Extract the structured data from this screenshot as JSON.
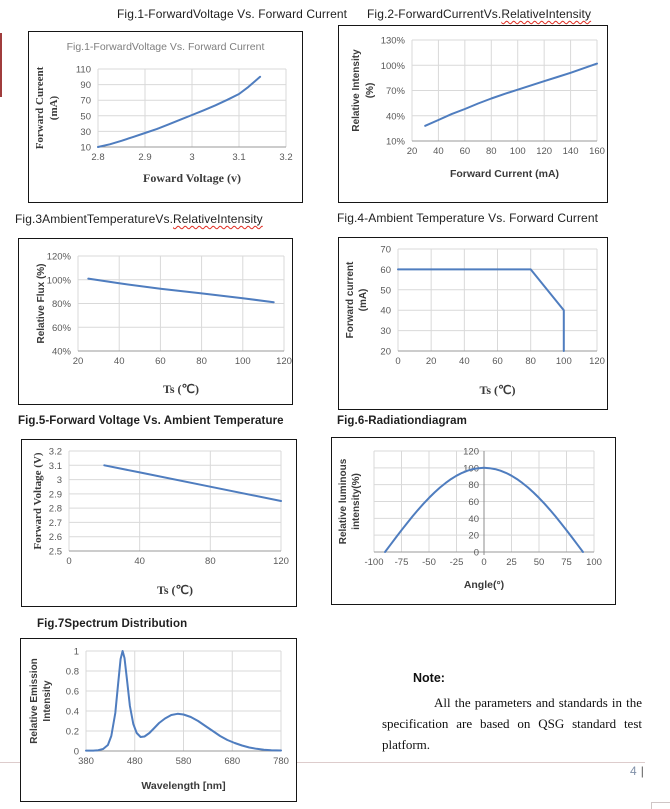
{
  "style": {
    "line_blue": "#4f7dbf",
    "grid_gray": "#d9d9d9",
    "axis_gray": "#9a9a9a",
    "center_axis_gray": "#8c8c8c",
    "tick_text": "#595959",
    "label_text": "#3a3a3a",
    "inner_title_gray": "#7f7f7f",
    "squiggle_red": "#e02b20"
  },
  "headers": {
    "fig1": {
      "prefix": "Fig.1-ForwardVoltage Vs. Forward Current",
      "squiggle": ""
    },
    "fig2": {
      "prefix": "Fig.2-ForwardCurrentVs.",
      "squiggle": "RelativeIntensity"
    },
    "fig3": {
      "prefix": "Fig.3AmbientTemperatureVs.",
      "squiggle": "RelativeIntensity"
    },
    "fig4": {
      "prefix": "Fig.4-Ambient Temperature Vs. Forward Current",
      "squiggle": ""
    },
    "fig5": {
      "prefix": "Fig.5-Forward Voltage Vs. Ambient Temperature",
      "squiggle": ""
    },
    "fig6": {
      "prefix": "Fig.6-Radiationdiagram",
      "squiggle": ""
    },
    "fig7": {
      "prefix": "Fig.7Spectrum Distribution",
      "squiggle": ""
    }
  },
  "chart_data": [
    {
      "id": "fig1",
      "type": "line",
      "title": "Fig.1-ForwardVoltage Vs. Forward Current",
      "inner_title": "Fig.1-ForwardVoltage Vs. Forward Current",
      "xlabel": "Foward Voltage (v)",
      "ylabel_lines": [
        "Forward Cureent",
        "(mA)"
      ],
      "xlim": [
        2.8,
        3.2
      ],
      "ylim": [
        10,
        110
      ],
      "xticks": [
        {
          "v": 2.8,
          "l": "2.8"
        },
        {
          "v": 2.9,
          "l": "2.9"
        },
        {
          "v": 3,
          "l": "3"
        },
        {
          "v": 3.1,
          "l": "3.1"
        },
        {
          "v": 3.2,
          "l": "3.2"
        }
      ],
      "yticks": [
        {
          "v": 10,
          "l": "10"
        },
        {
          "v": 30,
          "l": "30"
        },
        {
          "v": 50,
          "l": "50"
        },
        {
          "v": 70,
          "l": "70"
        },
        {
          "v": 90,
          "l": "90"
        },
        {
          "v": 110,
          "l": "110"
        }
      ],
      "points": [
        [
          2.8,
          10
        ],
        [
          2.825,
          13.5
        ],
        [
          2.85,
          18
        ],
        [
          2.875,
          23
        ],
        [
          2.9,
          28
        ],
        [
          2.925,
          33
        ],
        [
          2.95,
          39
        ],
        [
          2.975,
          45
        ],
        [
          3.0,
          51
        ],
        [
          3.025,
          57
        ],
        [
          3.05,
          63.5
        ],
        [
          3.075,
          70.5
        ],
        [
          3.1,
          78
        ],
        [
          3.12,
          87
        ],
        [
          3.145,
          100
        ]
      ]
    },
    {
      "id": "fig2",
      "type": "line",
      "title": "Fig.2-ForwardCurrentVs.RelativeIntensity",
      "xlabel": "Forward Current (mA)",
      "ylabel_lines": [
        "Relative Intensity",
        "(%)"
      ],
      "xlim": [
        20,
        160
      ],
      "ylim": [
        10,
        130
      ],
      "xticks": [
        {
          "v": 20,
          "l": "20"
        },
        {
          "v": 40,
          "l": "40"
        },
        {
          "v": 60,
          "l": "60"
        },
        {
          "v": 80,
          "l": "80"
        },
        {
          "v": 100,
          "l": "100"
        },
        {
          "v": 120,
          "l": "120"
        },
        {
          "v": 140,
          "l": "140"
        },
        {
          "v": 160,
          "l": "160"
        }
      ],
      "yticks": [
        {
          "v": 10,
          "l": "10%"
        },
        {
          "v": 40,
          "l": "40%"
        },
        {
          "v": 70,
          "l": "70%"
        },
        {
          "v": 100,
          "l": "100%"
        },
        {
          "v": 130,
          "l": "130%"
        }
      ],
      "points": [
        [
          30,
          28
        ],
        [
          40,
          35
        ],
        [
          50,
          42
        ],
        [
          60,
          48
        ],
        [
          70,
          54.5
        ],
        [
          80,
          60.5
        ],
        [
          90,
          66
        ],
        [
          100,
          71
        ],
        [
          110,
          76
        ],
        [
          120,
          81
        ],
        [
          130,
          86
        ],
        [
          140,
          91
        ],
        [
          150,
          96.5
        ],
        [
          160,
          102
        ]
      ]
    },
    {
      "id": "fig3",
      "type": "line",
      "title": "Fig.3AmbientTemperatureVs.RelativeIntensity",
      "xlabel": "Ts (℃)",
      "ylabel_lines": [
        "Relative Flux (%)"
      ],
      "xlim": [
        20,
        120
      ],
      "ylim": [
        40,
        120
      ],
      "xticks": [
        {
          "v": 20,
          "l": "20"
        },
        {
          "v": 40,
          "l": "40"
        },
        {
          "v": 60,
          "l": "60"
        },
        {
          "v": 80,
          "l": "80"
        },
        {
          "v": 100,
          "l": "100"
        },
        {
          "v": 120,
          "l": "120"
        }
      ],
      "yticks": [
        {
          "v": 40,
          "l": "40%"
        },
        {
          "v": 60,
          "l": "60%"
        },
        {
          "v": 80,
          "l": "80%"
        },
        {
          "v": 100,
          "l": "100%"
        },
        {
          "v": 120,
          "l": "120%"
        }
      ],
      "points": [
        [
          25,
          101
        ],
        [
          40,
          97
        ],
        [
          60,
          92.5
        ],
        [
          80,
          88.5
        ],
        [
          100,
          84.5
        ],
        [
          115,
          81
        ]
      ]
    },
    {
      "id": "fig4",
      "type": "line",
      "title": "Fig.4-Ambient Temperature Vs. Forward Current",
      "xlabel": "Ts (℃)",
      "ylabel_lines": [
        "Forward current",
        "(mA)"
      ],
      "xlim": [
        0,
        120
      ],
      "ylim": [
        20,
        70
      ],
      "xticks": [
        {
          "v": 0,
          "l": "0"
        },
        {
          "v": 20,
          "l": "20"
        },
        {
          "v": 40,
          "l": "40"
        },
        {
          "v": 60,
          "l": "60"
        },
        {
          "v": 80,
          "l": "80"
        },
        {
          "v": 100,
          "l": "100"
        },
        {
          "v": 120,
          "l": "120"
        }
      ],
      "yticks": [
        {
          "v": 20,
          "l": "20"
        },
        {
          "v": 30,
          "l": "30"
        },
        {
          "v": 40,
          "l": "40"
        },
        {
          "v": 50,
          "l": "50"
        },
        {
          "v": 60,
          "l": "60"
        },
        {
          "v": 70,
          "l": "70"
        }
      ],
      "points": [
        [
          0,
          60
        ],
        [
          80,
          60
        ],
        [
          100,
          40
        ],
        [
          100,
          20
        ]
      ]
    },
    {
      "id": "fig5",
      "type": "line",
      "title": "Fig.5-Forward Voltage Vs. Ambient Temperature",
      "xlabel": "Ts (℃)",
      "ylabel_lines": [
        "Forward Voltage (V)"
      ],
      "xlim": [
        0,
        120
      ],
      "ylim": [
        2.5,
        3.2
      ],
      "xticks": [
        {
          "v": 0,
          "l": "0"
        },
        {
          "v": 40,
          "l": "40"
        },
        {
          "v": 80,
          "l": "80"
        },
        {
          "v": 120,
          "l": "120"
        }
      ],
      "yticks": [
        {
          "v": 2.5,
          "l": "2.5"
        },
        {
          "v": 2.6,
          "l": "2.6"
        },
        {
          "v": 2.7,
          "l": "2.7"
        },
        {
          "v": 2.8,
          "l": "2.8"
        },
        {
          "v": 2.9,
          "l": "2.9"
        },
        {
          "v": 3,
          "l": "3"
        },
        {
          "v": 3.1,
          "l": "3.1"
        },
        {
          "v": 3.2,
          "l": "3.2"
        }
      ],
      "points": [
        [
          20,
          3.1
        ],
        [
          40,
          3.05
        ],
        [
          80,
          2.95
        ],
        [
          120,
          2.85
        ]
      ]
    },
    {
      "id": "fig6",
      "type": "line",
      "title": "Fig.6-Radiationdiagram",
      "xlabel": "Angle(°)",
      "ylabel_lines": [
        "Relative luminous",
        "intensity(%)"
      ],
      "xlim": [
        -100,
        100
      ],
      "ylim": [
        0,
        120
      ],
      "xticks": [
        {
          "v": -100,
          "l": "-100"
        },
        {
          "v": -75,
          "l": "-75"
        },
        {
          "v": -50,
          "l": "-50"
        },
        {
          "v": -25,
          "l": "-25"
        },
        {
          "v": 0,
          "l": "0"
        },
        {
          "v": 25,
          "l": "25"
        },
        {
          "v": 50,
          "l": "50"
        },
        {
          "v": 75,
          "l": "75"
        },
        {
          "v": 100,
          "l": "100"
        }
      ],
      "yticks": [
        {
          "v": 0,
          "l": "0"
        },
        {
          "v": 20,
          "l": "20"
        },
        {
          "v": 40,
          "l": "40"
        },
        {
          "v": 60,
          "l": "60"
        },
        {
          "v": 80,
          "l": "80"
        },
        {
          "v": 100,
          "l": "100"
        },
        {
          "v": 120,
          "l": "120"
        }
      ],
      "points": [
        [
          -90,
          0
        ],
        [
          -85,
          8.7
        ],
        [
          -80,
          17.4
        ],
        [
          -75,
          25.9
        ],
        [
          -70,
          34.2
        ],
        [
          -65,
          42.3
        ],
        [
          -60,
          50
        ],
        [
          -55,
          57.4
        ],
        [
          -50,
          64.3
        ],
        [
          -45,
          70.7
        ],
        [
          -40,
          76.6
        ],
        [
          -35,
          81.9
        ],
        [
          -30,
          86.6
        ],
        [
          -25,
          90.6
        ],
        [
          -20,
          94
        ],
        [
          -15,
          96.6
        ],
        [
          -10,
          98.5
        ],
        [
          -5,
          99.6
        ],
        [
          0,
          100
        ],
        [
          5,
          99.6
        ],
        [
          10,
          98.5
        ],
        [
          15,
          96.6
        ],
        [
          20,
          94
        ],
        [
          25,
          90.6
        ],
        [
          30,
          86.6
        ],
        [
          35,
          81.9
        ],
        [
          40,
          76.6
        ],
        [
          45,
          70.7
        ],
        [
          50,
          64.3
        ],
        [
          55,
          57.4
        ],
        [
          60,
          50
        ],
        [
          65,
          42.3
        ],
        [
          70,
          34.2
        ],
        [
          75,
          25.9
        ],
        [
          80,
          17.4
        ],
        [
          85,
          8.7
        ],
        [
          90,
          0
        ]
      ]
    },
    {
      "id": "fig7",
      "type": "line",
      "title": "Fig.7Spectrum Distribution",
      "xlabel": "Wavelength [nm]",
      "ylabel_lines": [
        "Relative Emission",
        "Intensity"
      ],
      "xlim": [
        380,
        780
      ],
      "ylim": [
        0,
        1
      ],
      "xticks": [
        {
          "v": 380,
          "l": "380"
        },
        {
          "v": 480,
          "l": "480"
        },
        {
          "v": 580,
          "l": "580"
        },
        {
          "v": 680,
          "l": "680"
        },
        {
          "v": 780,
          "l": "780"
        }
      ],
      "yticks": [
        {
          "v": 0,
          "l": "0"
        },
        {
          "v": 0.2,
          "l": "0.2"
        },
        {
          "v": 0.4,
          "l": "0.4"
        },
        {
          "v": 0.6,
          "l": "0.6"
        },
        {
          "v": 0.8,
          "l": "0.8"
        },
        {
          "v": 1,
          "l": "1"
        }
      ],
      "points": [
        [
          380,
          0.004
        ],
        [
          395,
          0.004
        ],
        [
          405,
          0.008
        ],
        [
          415,
          0.02
        ],
        [
          425,
          0.06
        ],
        [
          432,
          0.15
        ],
        [
          440,
          0.38
        ],
        [
          446,
          0.68
        ],
        [
          451,
          0.92
        ],
        [
          455,
          1.0
        ],
        [
          459,
          0.93
        ],
        [
          464,
          0.72
        ],
        [
          470,
          0.45
        ],
        [
          477,
          0.27
        ],
        [
          484,
          0.18
        ],
        [
          492,
          0.14
        ],
        [
          500,
          0.145
        ],
        [
          510,
          0.18
        ],
        [
          520,
          0.23
        ],
        [
          530,
          0.28
        ],
        [
          542,
          0.325
        ],
        [
          555,
          0.36
        ],
        [
          568,
          0.372
        ],
        [
          580,
          0.365
        ],
        [
          595,
          0.34
        ],
        [
          610,
          0.3
        ],
        [
          625,
          0.25
        ],
        [
          640,
          0.2
        ],
        [
          655,
          0.15
        ],
        [
          670,
          0.11
        ],
        [
          685,
          0.08
        ],
        [
          700,
          0.055
        ],
        [
          715,
          0.035
        ],
        [
          730,
          0.022
        ],
        [
          745,
          0.013
        ],
        [
          760,
          0.008
        ],
        [
          780,
          0.005
        ]
      ]
    }
  ],
  "note": {
    "heading": "Note:",
    "body": "All the parameters and standards in the specification are based on QSG standard test platform."
  },
  "footer": {
    "page_number": "4",
    "separator": "|"
  }
}
